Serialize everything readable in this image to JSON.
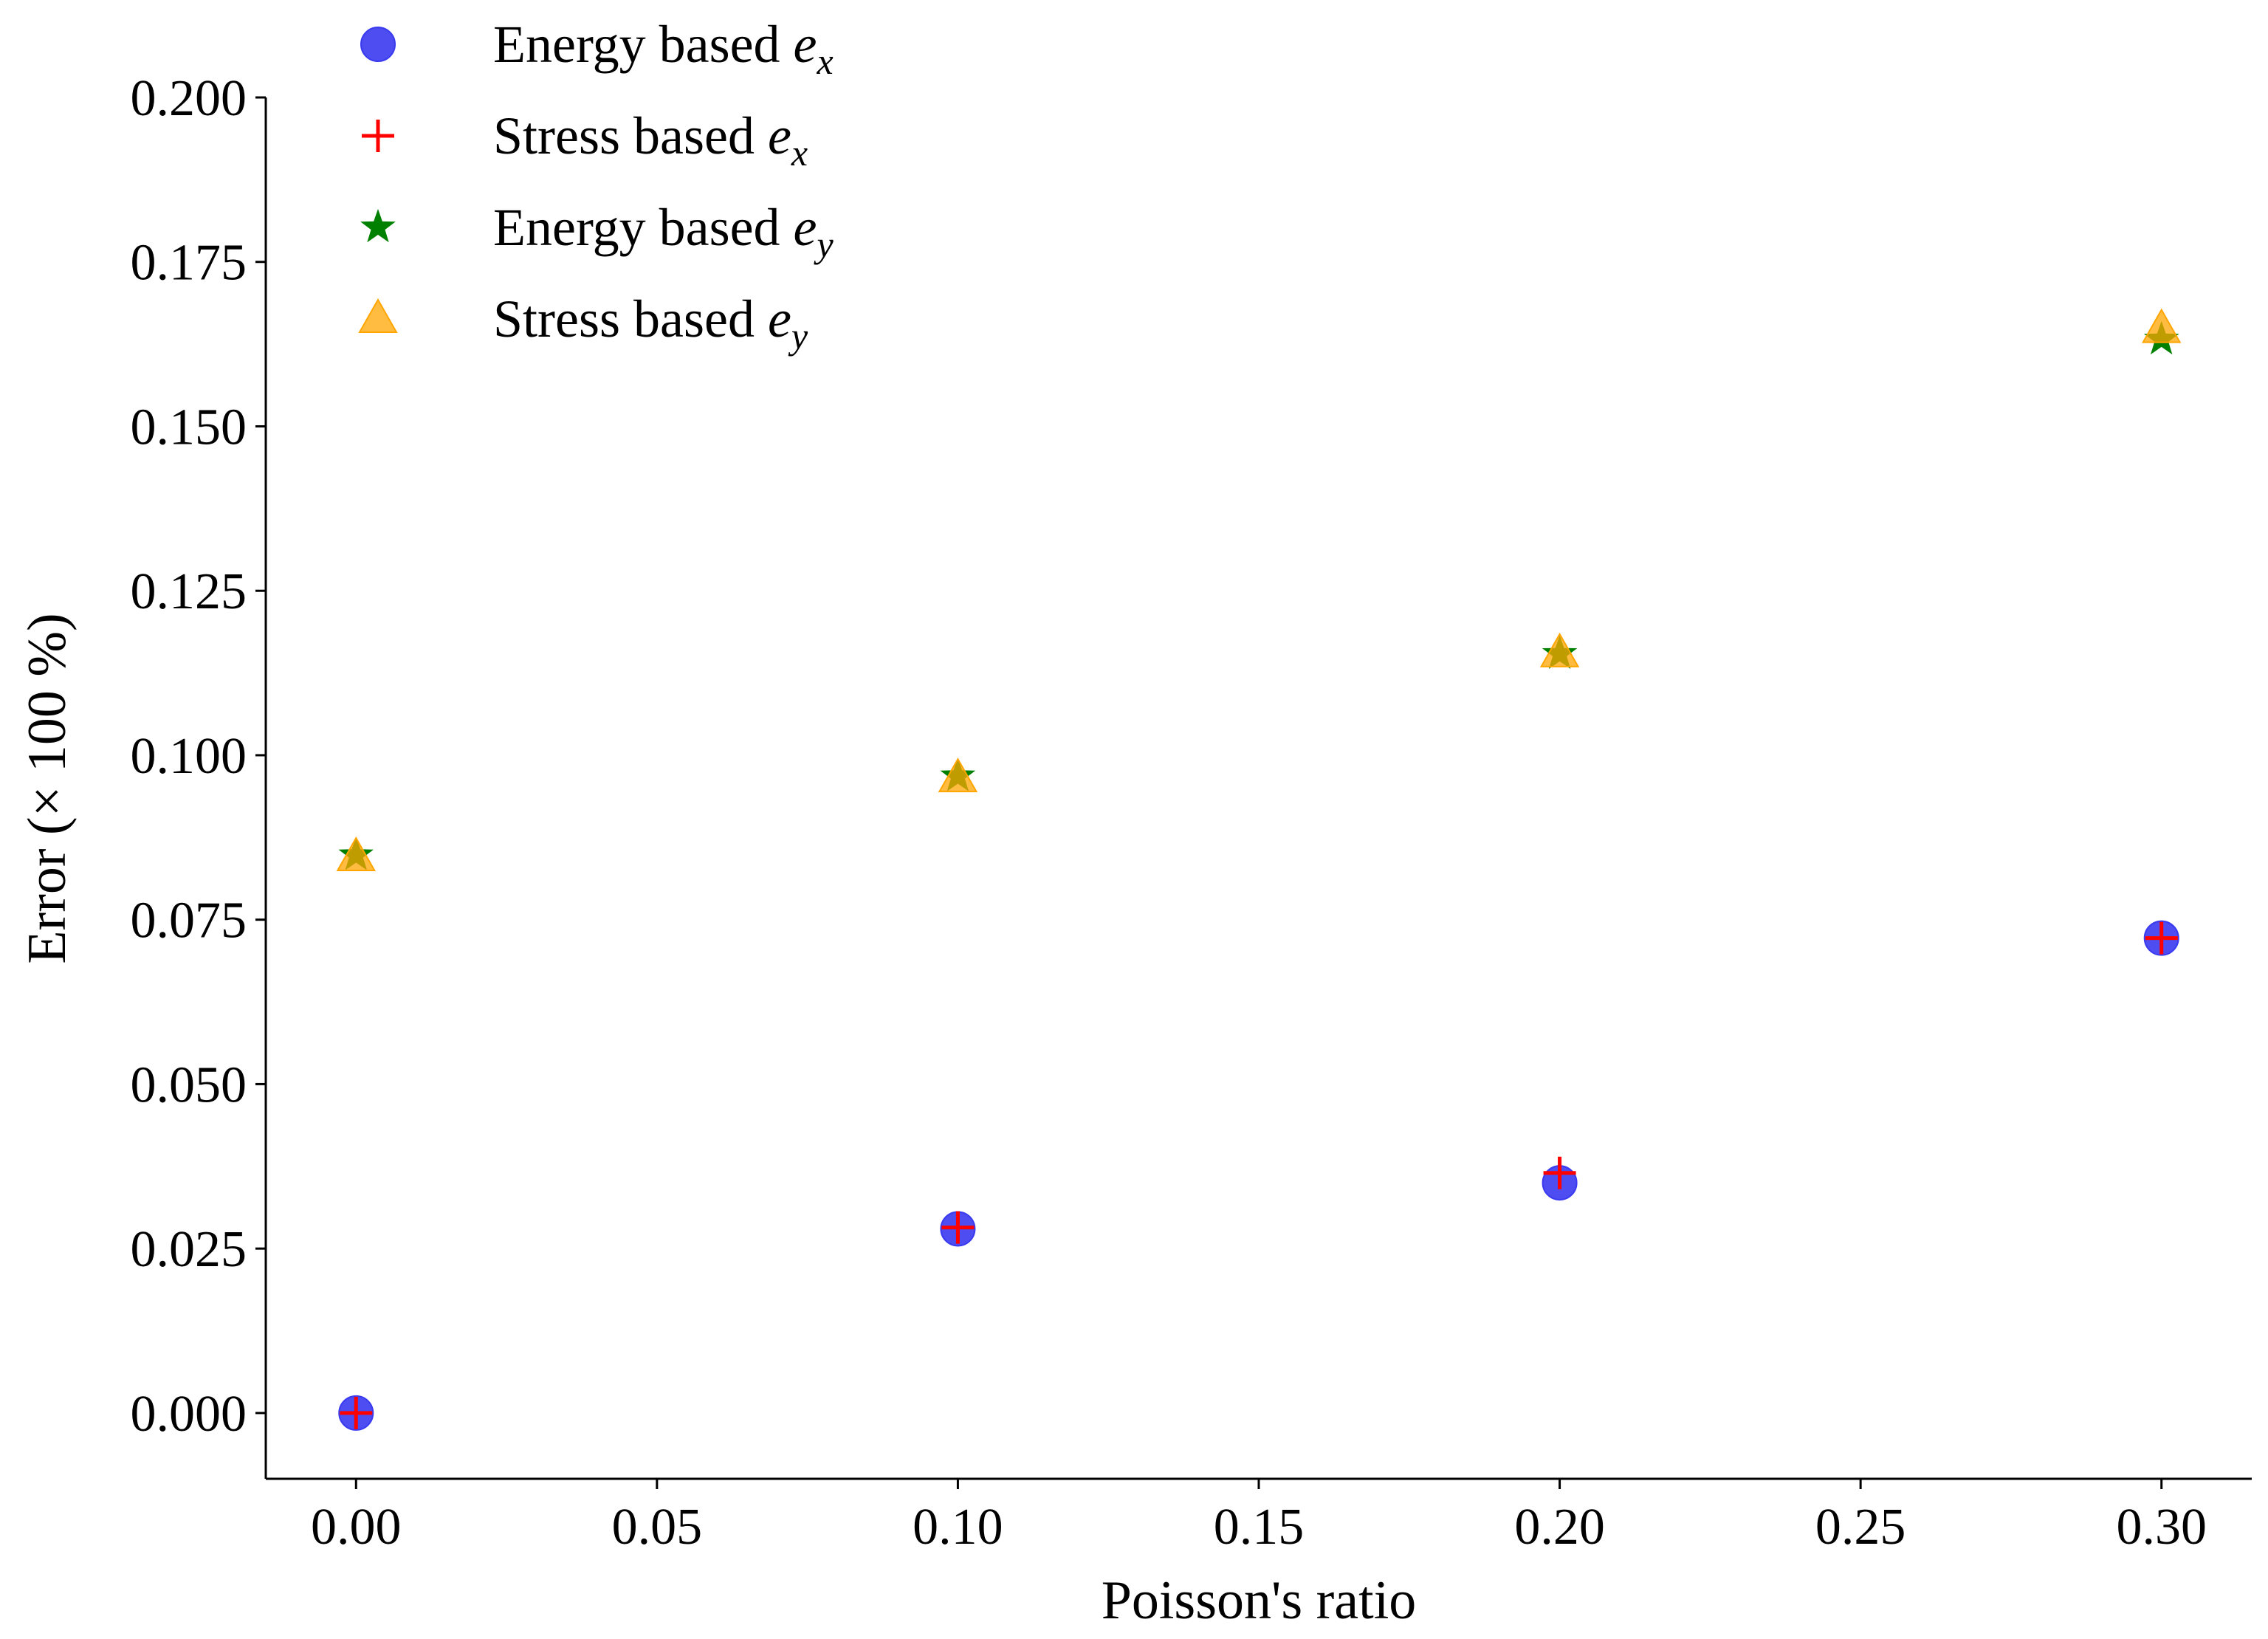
{
  "chart_data": {
    "type": "scatter",
    "title": "",
    "xlabel": "Poisson's ratio",
    "ylabel": "Error (× 100 %)",
    "xlim": [
      -0.015,
      0.315
    ],
    "ylim": [
      -0.01,
      0.2
    ],
    "xticks": [
      "0.00",
      "0.05",
      "0.10",
      "0.15",
      "0.20",
      "0.25",
      "0.30"
    ],
    "yticks": [
      "0.000",
      "0.025",
      "0.050",
      "0.075",
      "0.100",
      "0.125",
      "0.150",
      "0.175",
      "0.200"
    ],
    "grid": false,
    "legend_position": "top-left",
    "series": [
      {
        "name": "Energy based ex",
        "label_main": "Energy based ",
        "label_var": "e",
        "label_sub": "x",
        "marker": "circle",
        "color": "#3a3af0",
        "x": [
          0.0,
          0.1,
          0.2,
          0.3
        ],
        "y": [
          0.0,
          0.028,
          0.035,
          0.0722
        ]
      },
      {
        "name": "Stress based ex",
        "label_main": "Stress based ",
        "label_var": "e",
        "label_sub": "x",
        "marker": "plus",
        "color": "#ff0000",
        "x": [
          0.0,
          0.1,
          0.2,
          0.3
        ],
        "y": [
          0.0,
          0.0282,
          0.0365,
          0.0722
        ]
      },
      {
        "name": "Energy based ey",
        "label_main": "Energy based ",
        "label_var": "e",
        "label_sub": "y",
        "marker": "star",
        "color": "#008000",
        "x": [
          0.0,
          0.1,
          0.2,
          0.3
        ],
        "y": [
          0.0848,
          0.0968,
          0.1154,
          0.1632
        ]
      },
      {
        "name": "Stress based ey",
        "label_main": "Stress based ",
        "label_var": "e",
        "label_sub": "y",
        "marker": "triangle",
        "color": "#ffa500",
        "x": [
          0.0,
          0.1,
          0.2,
          0.3
        ],
        "y": [
          0.0845,
          0.0965,
          0.1155,
          0.1648
        ]
      }
    ]
  }
}
